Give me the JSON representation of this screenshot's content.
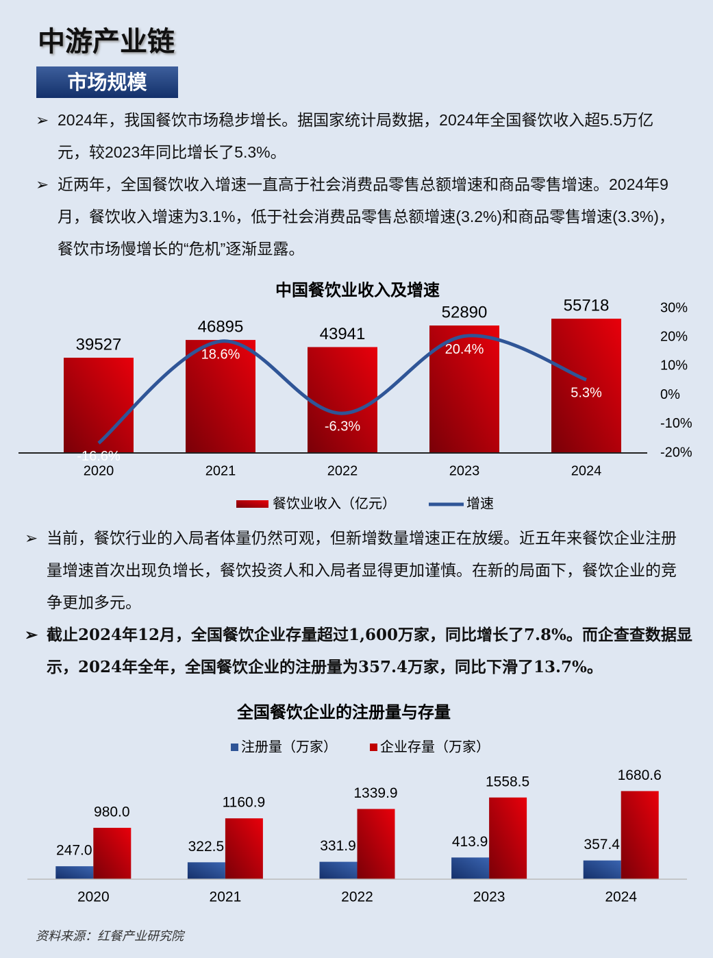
{
  "header": {
    "title": "中游产业链",
    "section": "市场规模"
  },
  "bullets_top": [
    "2024年，我国餐饮市场稳步增长。据国家统计局数据，2024年全国餐饮收入超5.5万亿元，较2023年同比增长了5.3%。",
    "近两年，全国餐饮收入增速一直高于社会消费品零售总额增速和商品零售增速。2024年9月，餐饮收入增速为3.1%，低于社会消费品零售总额增速(3.2%)和商品零售增速(3.3%)，餐饮市场慢增长的“危机”逐渐显露。"
  ],
  "bullets_bottom": [
    "当前，餐饮行业的入局者体量仍然可观，但新增数量增速正在放缓。近五年来餐饮企业注册量增速首次出现负增长，餐饮投资人和入局者显得更加谨慎。在新的局面下，餐饮企业的竞争更加多元。",
    "截止2024年12月，全国餐饮企业存量超过1,600万家，同比增长了7.8%。而企查查数据显示，2024年全年，全国餐饮企业的注册量为357.4万家，同比下滑了13.7%。"
  ],
  "source": "资料来源：红餐产业研究院",
  "chart_data": [
    {
      "type": "combo",
      "title": "中国餐饮业收入及增速",
      "categories": [
        "2020",
        "2021",
        "2022",
        "2023",
        "2024"
      ],
      "ylim": [
        0,
        60000
      ],
      "y2lim": [
        -20,
        30
      ],
      "y2ticks": [
        {
          "value": 30,
          "label": "30%"
        },
        {
          "value": 20,
          "label": "20%"
        },
        {
          "value": 10,
          "label": "10%"
        },
        {
          "value": 0,
          "label": "0%"
        },
        {
          "value": -10,
          "label": "-10%"
        },
        {
          "value": -20,
          "label": "-20%"
        }
      ],
      "series": [
        {
          "name": "餐饮业收入（亿元）",
          "color": "#c00000",
          "values": [
            39527,
            46895,
            43941,
            52890,
            55718
          ]
        },
        {
          "name": "增速",
          "color": "#2f5597",
          "axis": "y2",
          "values": [
            -16.6,
            18.6,
            -6.3,
            20.4,
            5.3
          ],
          "value_labels": [
            "-16.6%",
            "18.6%",
            "-6.3%",
            "20.4%",
            "5.3%"
          ]
        }
      ]
    },
    {
      "type": "bar",
      "title": "全国餐饮企业的注册量与存量",
      "categories": [
        "2020",
        "2021",
        "2022",
        "2023",
        "2024"
      ],
      "ylim": [
        0,
        2000
      ],
      "series": [
        {
          "name": "注册量（万家）",
          "color": "#2f5597",
          "values": [
            247.0,
            322.5,
            331.9,
            413.9,
            357.4
          ],
          "value_labels": [
            "247.0",
            "322.5",
            "331.9",
            "413.9",
            "357.4"
          ]
        },
        {
          "name": "企业存量（万家）",
          "color": "#c00000",
          "values": [
            980.0,
            1160.9,
            1339.9,
            1558.5,
            1680.6
          ],
          "value_labels": [
            "980.0",
            "1160.9",
            "1339.9",
            "1558.5",
            "1680.6"
          ]
        }
      ]
    }
  ]
}
